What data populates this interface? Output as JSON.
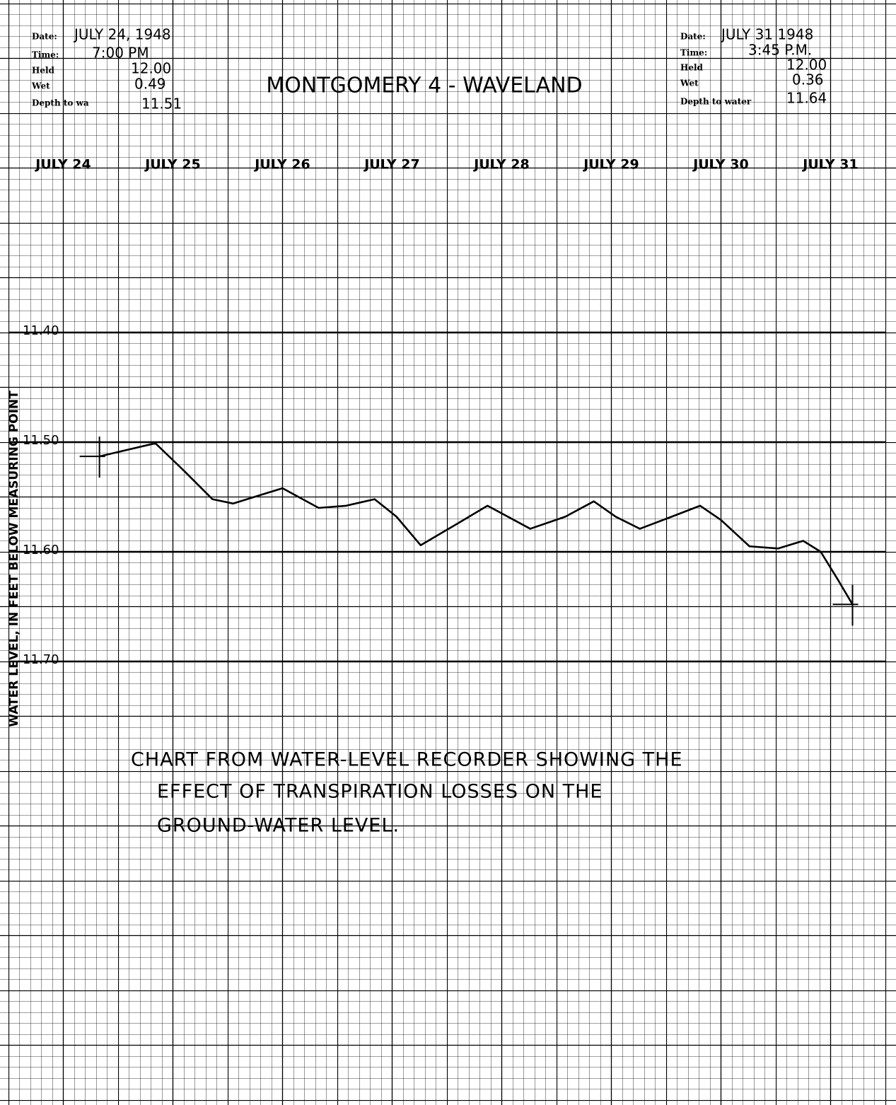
{
  "chart_data": {
    "type": "line",
    "title": "MONTGOMERY 4 - WAVELAND",
    "y_label": "WATER LEVEL, IN FEET BELOW MEASURING POINT",
    "header_left": [
      {
        "label": "Date:",
        "value": "JULY 24, 1948"
      },
      {
        "label": "Time:",
        "value": "7:00 PM"
      },
      {
        "label": "Held",
        "value": "12.00"
      },
      {
        "label": "Wet",
        "value": "0.49"
      },
      {
        "label": "Depth to wa",
        "value": "11.51"
      }
    ],
    "header_right": [
      {
        "label": "Date:",
        "value": "JULY 31 1948"
      },
      {
        "label": "Time:",
        "value": "3:45 P.M."
      },
      {
        "label": "Held",
        "value": "12.00"
      },
      {
        "label": "Wet",
        "value": "0.36"
      },
      {
        "label": "Depth to water",
        "value": "11.64"
      }
    ],
    "annotation": [
      "CHART FROM WATER-LEVEL RECORDER SHOWING THE",
      "EFFECT OF TRANSPIRATION LOSSES ON THE",
      "GROUND-WATER LEVEL."
    ],
    "x": [
      0.83,
      1.34,
      1.6,
      1.86,
      2.05,
      2.5,
      2.83,
      3.08,
      3.34,
      3.54,
      3.76,
      4.05,
      4.37,
      4.76,
      5.08,
      5.34,
      5.54,
      5.76,
      6.05,
      6.31,
      6.5,
      6.76,
      7.02,
      7.25,
      7.41,
      7.57,
      7.7
    ],
    "series": [
      {
        "color": "#000000",
        "values": [
          11.513,
          11.501,
          11.526,
          11.552,
          11.556,
          11.542,
          11.56,
          11.558,
          11.552,
          11.568,
          11.594,
          11.577,
          11.558,
          11.579,
          11.568,
          11.554,
          11.568,
          11.579,
          11.568,
          11.558,
          11.571,
          11.595,
          11.597,
          11.59,
          11.6,
          11.626,
          11.648
        ]
      }
    ],
    "xlim": [
      0,
      8
    ],
    "xticks": [
      {
        "value": 0.5,
        "label": "JULY 24"
      },
      {
        "value": 1.5,
        "label": "JULY 25"
      },
      {
        "value": 2.5,
        "label": "JULY 26"
      },
      {
        "value": 3.5,
        "label": "JULY 27"
      },
      {
        "value": 4.5,
        "label": "JULY 28"
      },
      {
        "value": 5.5,
        "label": "JULY 29"
      },
      {
        "value": 6.5,
        "label": "JULY 30"
      },
      {
        "value": 7.5,
        "label": "JULY 31"
      }
    ],
    "ylim": [
      11.1,
      12.1
    ],
    "inverted_y": true,
    "yticks": [
      {
        "value": 11.4,
        "label": "11.40"
      },
      {
        "value": 11.5,
        "label": "11.50"
      },
      {
        "value": 11.6,
        "label": "11.60"
      },
      {
        "value": 11.7,
        "label": "11.70"
      }
    ],
    "grid": true
  }
}
